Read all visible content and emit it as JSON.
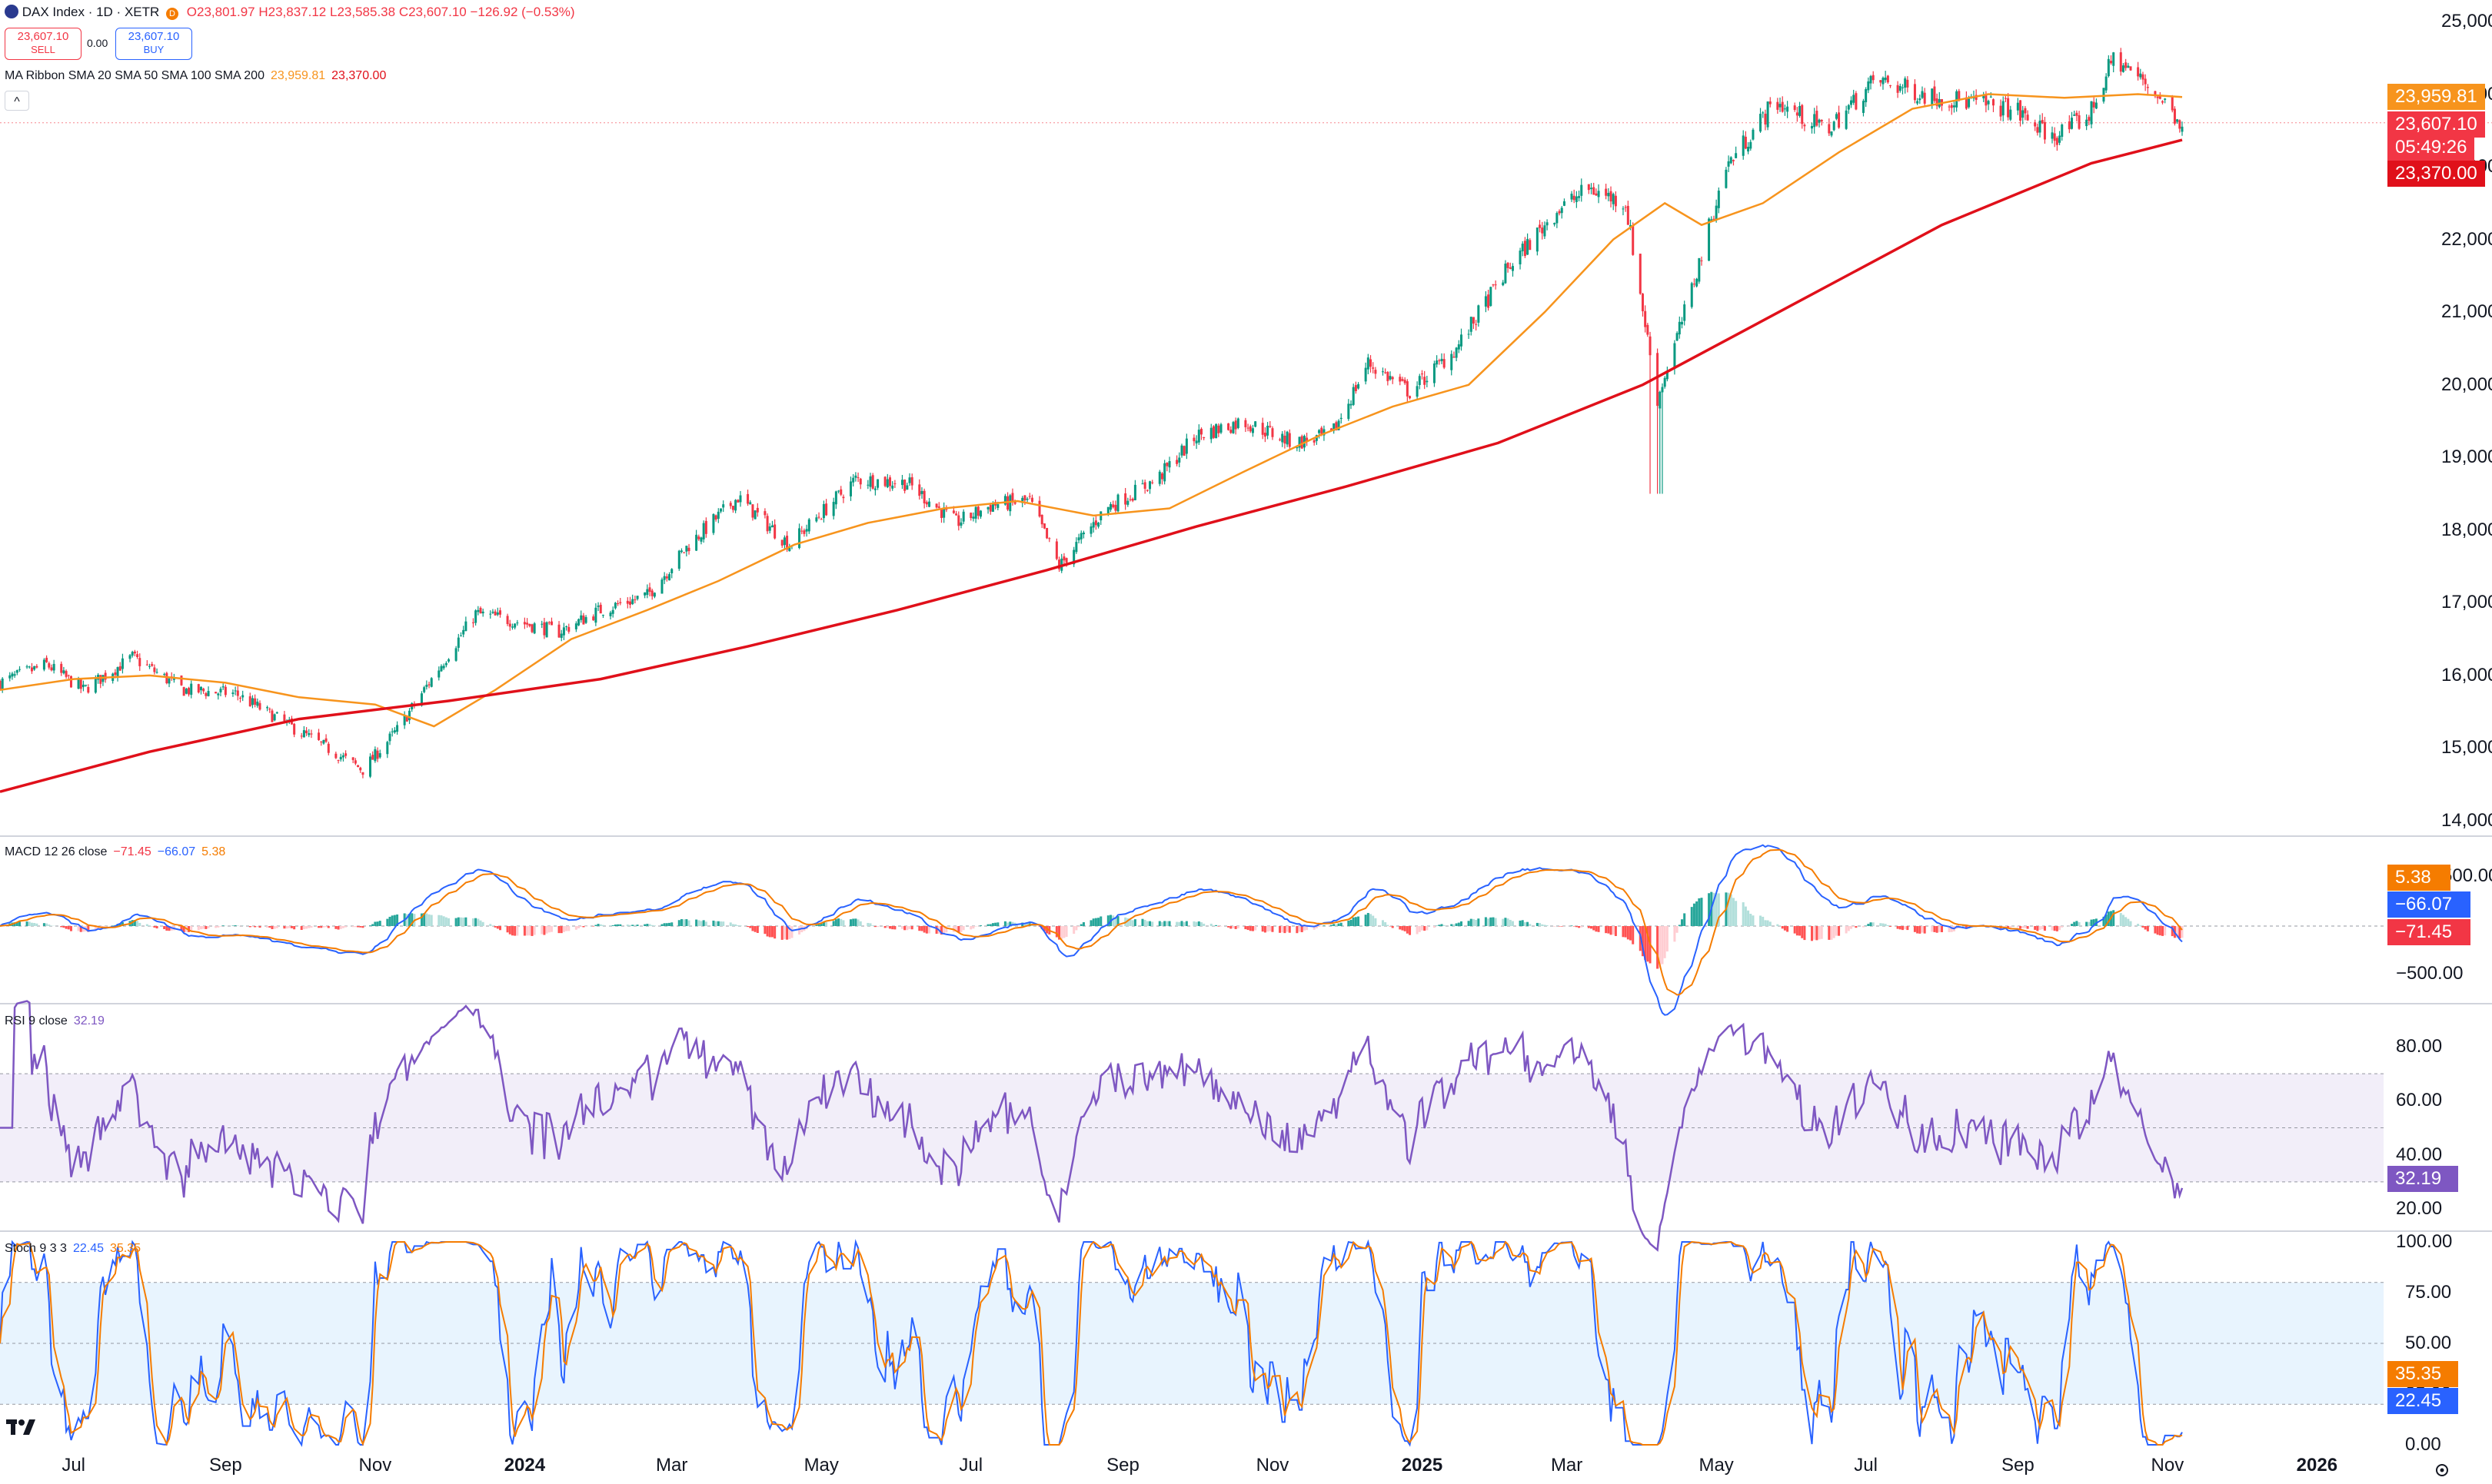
{
  "header": {
    "symbol": "DAX Index · 1D · XETR",
    "market_badge": "D",
    "ohlc": {
      "o": "O23,801.97",
      "h": "H23,837.12",
      "l": "L23,585.38",
      "c": "C23,607.10",
      "chg": "−126.92 (−0.53%)"
    },
    "sell": {
      "price": "23,607.10",
      "label": "SELL"
    },
    "spread": "0.00",
    "buy": {
      "price": "23,607.10",
      "label": "BUY"
    },
    "ma_ribbon": {
      "label": "MA Ribbon SMA 20 SMA 50 SMA 100 SMA 200",
      "v1": "23,959.81",
      "v2": "23,370.00"
    },
    "collapse_glyph": "^"
  },
  "price_axis": {
    "ticks": [
      "25,000.00",
      "24,000.00",
      "23,000.00",
      "22,000.00",
      "21,000.00",
      "20,000.00",
      "19,000.00",
      "18,000.00",
      "17,000.00",
      "16,000.00",
      "15,000.00",
      "14,000.00"
    ],
    "tags": {
      "sma50": "23,959.81",
      "last": "23,607.10",
      "countdown": "05:49:26",
      "sma200": "23,370.00"
    }
  },
  "macd": {
    "label": "MACD 12 26 close",
    "hist": "−71.45",
    "macd": "−66.07",
    "signal": "5.38",
    "axis": [
      "500.00",
      "−500.00"
    ],
    "tags": {
      "signal": "5.38",
      "macd": "−66.07",
      "hist": "−71.45"
    }
  },
  "rsi": {
    "label": "RSI 9 close",
    "value": "32.19",
    "axis": [
      "80.00",
      "60.00",
      "40.00",
      "20.00"
    ],
    "tag": "32.19"
  },
  "stoch": {
    "label": "Stoch 9 3 3",
    "k": "22.45",
    "d": "35.35",
    "axis": [
      "100.00",
      "75.00",
      "50.00",
      "25.00",
      "0.00"
    ],
    "tags": {
      "d": "35.35",
      "k": "22.45"
    }
  },
  "time_axis": [
    "Jul",
    "Sep",
    "Nov",
    "2024",
    "Mar",
    "May",
    "Jul",
    "Sep",
    "Nov",
    "2025",
    "Mar",
    "May",
    "Jul",
    "Sep",
    "Nov",
    "2026"
  ],
  "colors": {
    "up": "#089981",
    "down": "#f23645",
    "sma50": "#f7941d",
    "sma200": "#e0101a",
    "macd": "#2962ff",
    "signal": "#f57c00",
    "rsi": "#7e57c2",
    "stoch_k": "#2962ff",
    "stoch_d": "#f57c00"
  },
  "chart_data": [
    {
      "type": "candlestick",
      "title": "DAX Index · 1D · XETR",
      "ylim": [
        14000,
        25000
      ],
      "x_ticks": [
        "Jul",
        "Sep",
        "Nov",
        "2024",
        "Mar",
        "May",
        "Jul",
        "Sep",
        "Nov",
        "2025",
        "Mar",
        "May",
        "Jul",
        "Sep",
        "Nov",
        "2026"
      ],
      "close_path": [
        [
          "2023-06-01",
          15900
        ],
        [
          "2023-06-20",
          16150
        ],
        [
          "2023-07-05",
          15800
        ],
        [
          "2023-07-25",
          16250
        ],
        [
          "2023-08-15",
          15800
        ],
        [
          "2023-09-05",
          15750
        ],
        [
          "2023-09-25",
          15350
        ],
        [
          "2023-10-10",
          15050
        ],
        [
          "2023-10-27",
          14700
        ],
        [
          "2023-11-10",
          15250
        ],
        [
          "2023-11-25",
          16000
        ],
        [
          "2023-12-12",
          16850
        ],
        [
          "2023-12-28",
          16750
        ],
        [
          "2024-01-15",
          16600
        ],
        [
          "2024-02-01",
          16900
        ],
        [
          "2024-02-20",
          17100
        ],
        [
          "2024-03-08",
          17800
        ],
        [
          "2024-03-28",
          18450
        ],
        [
          "2024-04-18",
          17800
        ],
        [
          "2024-05-15",
          18700
        ],
        [
          "2024-06-05",
          18650
        ],
        [
          "2024-06-25",
          18100
        ],
        [
          "2024-07-10",
          18350
        ],
        [
          "2024-07-25",
          18400
        ],
        [
          "2024-08-06",
          17500
        ],
        [
          "2024-08-25",
          18300
        ],
        [
          "2024-09-15",
          18700
        ],
        [
          "2024-10-01",
          19300
        ],
        [
          "2024-10-20",
          19500
        ],
        [
          "2024-11-10",
          19200
        ],
        [
          "2024-11-25",
          19300
        ],
        [
          "2024-12-10",
          20300
        ],
        [
          "2024-12-27",
          19900
        ],
        [
          "2025-01-15",
          20500
        ],
        [
          "2025-02-05",
          21600
        ],
        [
          "2025-02-25",
          22400
        ],
        [
          "2025-03-10",
          22700
        ],
        [
          "2025-03-25",
          22500
        ],
        [
          "2025-04-07",
          19800
        ],
        [
          "2025-04-20",
          21200
        ],
        [
          "2025-05-05",
          23000
        ],
        [
          "2025-05-25",
          23900
        ],
        [
          "2025-06-15",
          23500
        ],
        [
          "2025-07-05",
          24200
        ],
        [
          "2025-07-25",
          24000
        ],
        [
          "2025-08-10",
          23900
        ],
        [
          "2025-08-30",
          23800
        ],
        [
          "2025-09-15",
          23400
        ],
        [
          "2025-09-30",
          23700
        ],
        [
          "2025-10-10",
          24500
        ],
        [
          "2025-10-25",
          24100
        ],
        [
          "2025-11-07",
          23607
        ]
      ],
      "series": [
        {
          "name": "SMA 50",
          "last": 23959.81,
          "values": [
            [
              "2023-06-01",
              15800
            ],
            [
              "2023-07-01",
              15950
            ],
            [
              "2023-08-01",
              16000
            ],
            [
              "2023-09-01",
              15900
            ],
            [
              "2023-10-01",
              15700
            ],
            [
              "2023-11-01",
              15600
            ],
            [
              "2023-11-25",
              15300
            ],
            [
              "2023-12-20",
              15800
            ],
            [
              "2024-01-20",
              16500
            ],
            [
              "2024-02-20",
              16900
            ],
            [
              "2024-03-20",
              17300
            ],
            [
              "2024-04-20",
              17800
            ],
            [
              "2024-05-20",
              18100
            ],
            [
              "2024-06-20",
              18300
            ],
            [
              "2024-07-20",
              18400
            ],
            [
              "2024-08-20",
              18200
            ],
            [
              "2024-09-20",
              18300
            ],
            [
              "2024-10-20",
              18800
            ],
            [
              "2024-11-20",
              19300
            ],
            [
              "2024-12-20",
              19700
            ],
            [
              "2025-01-20",
              20000
            ],
            [
              "2025-02-20",
              21000
            ],
            [
              "2025-03-20",
              22000
            ],
            [
              "2025-04-10",
              22500
            ],
            [
              "2025-04-25",
              22200
            ],
            [
              "2025-05-20",
              22500
            ],
            [
              "2025-06-20",
              23200
            ],
            [
              "2025-07-20",
              23800
            ],
            [
              "2025-08-20",
              24000
            ],
            [
              "2025-09-20",
              23950
            ],
            [
              "2025-10-20",
              24000
            ],
            [
              "2025-11-07",
              23960
            ]
          ]
        },
        {
          "name": "SMA 200",
          "last": 23370.0,
          "values": [
            [
              "2023-06-01",
              14400
            ],
            [
              "2023-08-01",
              14950
            ],
            [
              "2023-10-01",
              15400
            ],
            [
              "2023-12-01",
              15650
            ],
            [
              "2024-02-01",
              15950
            ],
            [
              "2024-04-01",
              16400
            ],
            [
              "2024-06-01",
              16900
            ],
            [
              "2024-08-01",
              17450
            ],
            [
              "2024-10-01",
              18050
            ],
            [
              "2024-12-01",
              18600
            ],
            [
              "2025-02-01",
              19200
            ],
            [
              "2025-04-01",
              20000
            ],
            [
              "2025-06-01",
              21100
            ],
            [
              "2025-08-01",
              22200
            ],
            [
              "2025-10-01",
              23050
            ],
            [
              "2025-11-07",
              23370
            ]
          ]
        }
      ]
    },
    {
      "type": "line",
      "title": "MACD 12 26 close",
      "series": [
        {
          "name": "MACD",
          "last": -66.07
        },
        {
          "name": "Signal",
          "last": 5.38
        },
        {
          "name": "Histogram",
          "last": -71.45
        }
      ]
    },
    {
      "type": "line",
      "title": "RSI 9 close",
      "ylim": [
        20,
        80
      ],
      "series": [
        {
          "name": "RSI",
          "last": 32.19
        }
      ]
    },
    {
      "type": "line",
      "title": "Stoch 9 3 3",
      "ylim": [
        0,
        100
      ],
      "series": [
        {
          "name": "%K",
          "last": 22.45
        },
        {
          "name": "%D",
          "last": 35.35
        }
      ]
    }
  ]
}
